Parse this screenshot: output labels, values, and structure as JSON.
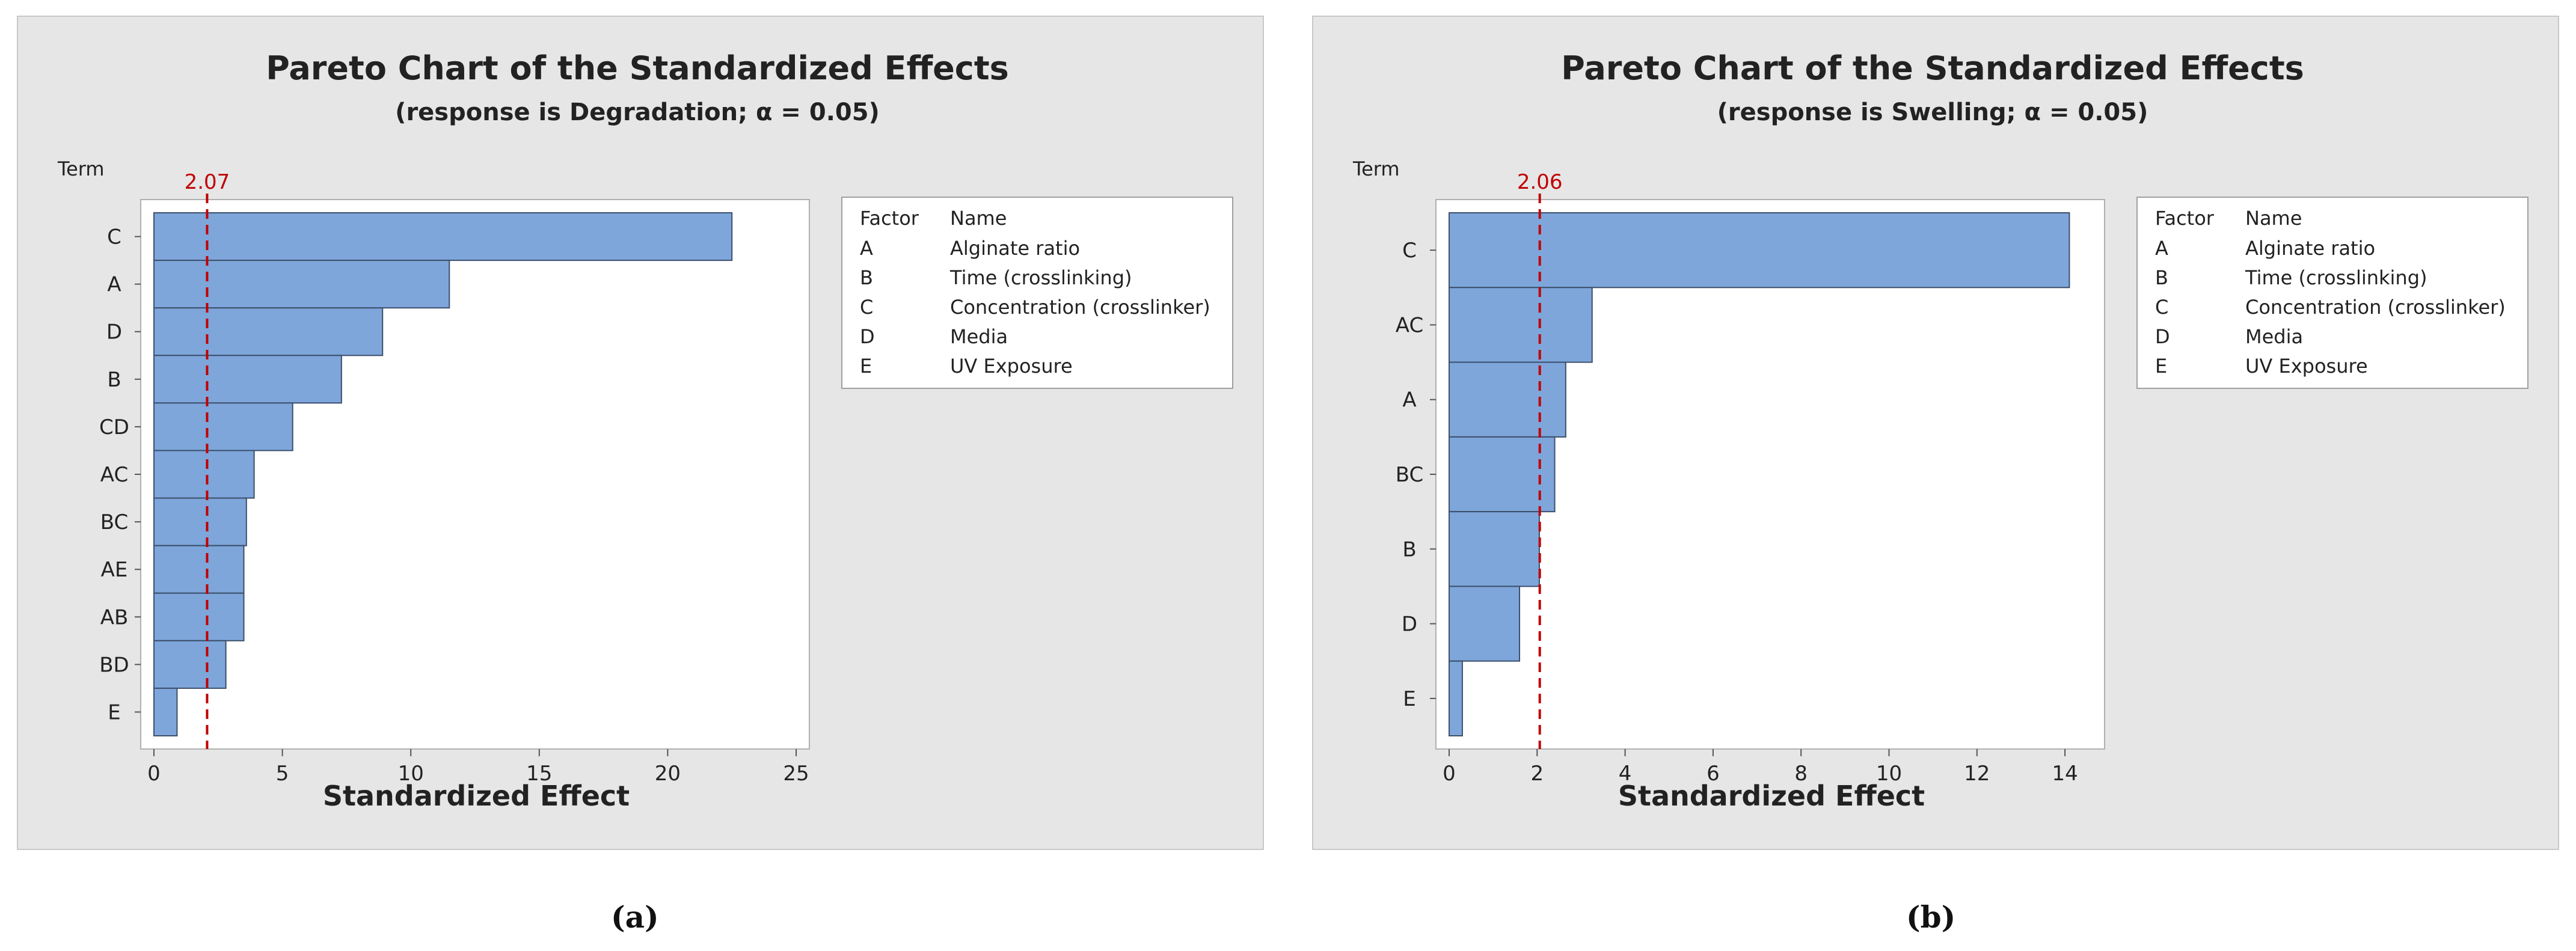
{
  "captions": [
    "(a)",
    "(b)"
  ],
  "legend": {
    "factor_header": "Factor",
    "name_header": "Name",
    "rows": [
      {
        "factor": "A",
        "name": "Alginate ratio"
      },
      {
        "factor": "B",
        "name": "Time (crosslinking)"
      },
      {
        "factor": "C",
        "name": "Concentration (crosslinker)"
      },
      {
        "factor": "D",
        "name": "Media"
      },
      {
        "factor": "E",
        "name": "UV Exposure"
      }
    ]
  },
  "colors": {
    "bar_fill": "#7ea6db",
    "bar_stroke": "#3c4f6b",
    "reference_line": "#c00000",
    "panel_bg": "#e6e6e6",
    "plot_bg": "#ffffff"
  },
  "chart_data": [
    {
      "type": "bar",
      "orientation": "horizontal",
      "title": "Pareto Chart of the Standardized Effects",
      "subtitle": "(response is Degradation; α = 0.05)",
      "ylabel": "Term",
      "xlabel": "Standardized Effect",
      "categories": [
        "C",
        "A",
        "D",
        "B",
        "CD",
        "AC",
        "BC",
        "AE",
        "AB",
        "BD",
        "E"
      ],
      "values": [
        22.5,
        11.5,
        8.9,
        7.3,
        5.4,
        3.9,
        3.6,
        3.5,
        3.5,
        2.8,
        0.9
      ],
      "xlim": [
        0,
        25
      ],
      "xticks": [
        0,
        5,
        10,
        15,
        20,
        25
      ],
      "reference_line": 2.07,
      "reference_label": "2.07",
      "legend_position": "right"
    },
    {
      "type": "bar",
      "orientation": "horizontal",
      "title": "Pareto Chart of the Standardized Effects",
      "subtitle": "(response is Swelling; α = 0.05)",
      "ylabel": "Term",
      "xlabel": "Standardized Effect",
      "categories": [
        "C",
        "AC",
        "A",
        "BC",
        "B",
        "D",
        "E"
      ],
      "values": [
        14.1,
        3.25,
        2.65,
        2.4,
        2.05,
        1.6,
        0.3
      ],
      "xlim": [
        0,
        14.6
      ],
      "xticks": [
        0,
        2,
        4,
        6,
        8,
        10,
        12,
        14
      ],
      "reference_line": 2.06,
      "reference_label": "2.06",
      "legend_position": "right"
    }
  ]
}
